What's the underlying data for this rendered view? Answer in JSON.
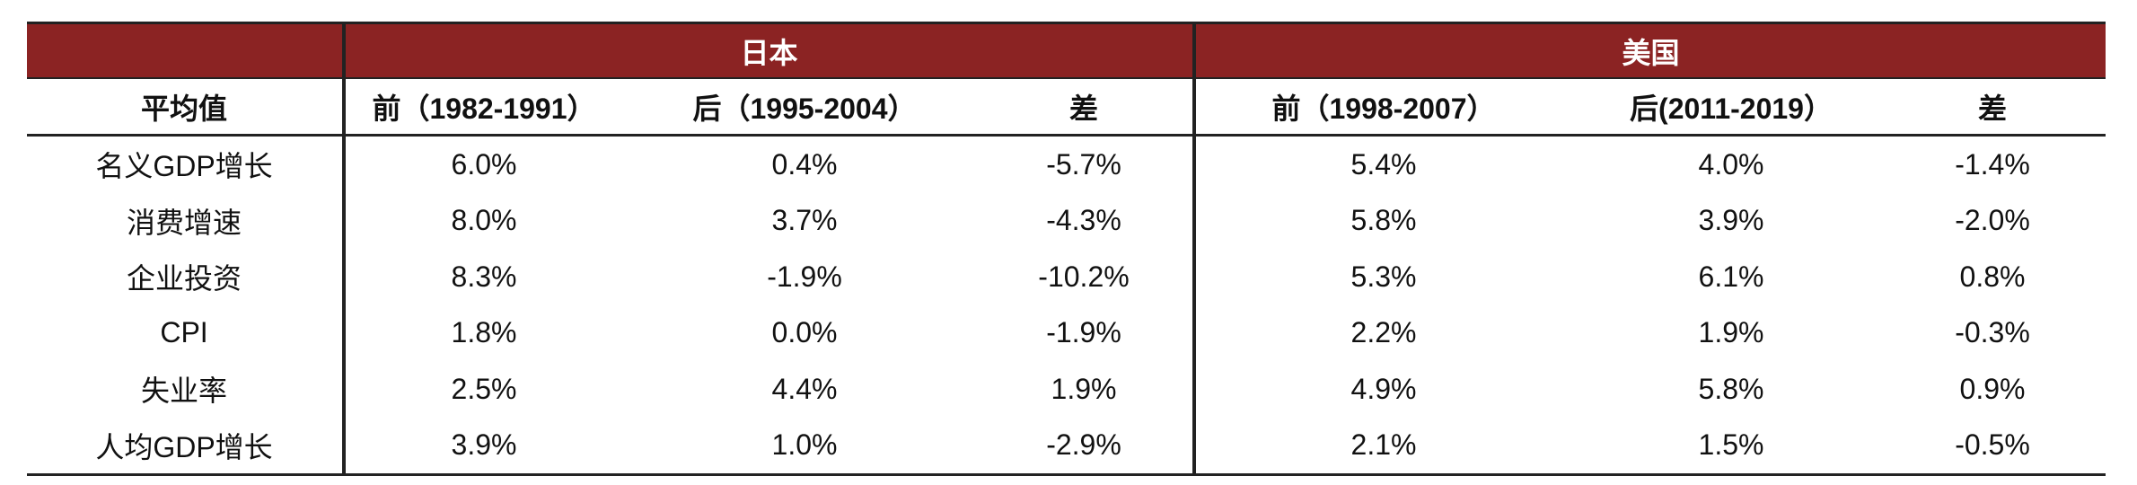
{
  "table": {
    "groups": [
      "日本",
      "美国"
    ],
    "header": [
      "平均值",
      "前（1982-1991）",
      "后（1995-2004）",
      "差",
      "前（1998-2007）",
      "后(2011-2019）",
      "差"
    ],
    "rows": [
      [
        "名义GDP增长",
        "6.0%",
        "0.4%",
        "-5.7%",
        "5.4%",
        "4.0%",
        "-1.4%"
      ],
      [
        "消费增速",
        "8.0%",
        "3.7%",
        "-4.3%",
        "5.8%",
        "3.9%",
        "-2.0%"
      ],
      [
        "企业投资",
        "8.3%",
        "-1.9%",
        "-10.2%",
        "5.3%",
        "6.1%",
        "0.8%"
      ],
      [
        "CPI",
        "1.8%",
        "0.0%",
        "-1.9%",
        "2.2%",
        "1.9%",
        "-0.3%"
      ],
      [
        "失业率",
        "2.5%",
        "4.4%",
        "1.9%",
        "4.9%",
        "5.8%",
        "0.9%"
      ],
      [
        "人均GDP增长",
        "3.9%",
        "1.0%",
        "-2.9%",
        "2.1%",
        "1.5%",
        "-0.5%"
      ]
    ]
  }
}
